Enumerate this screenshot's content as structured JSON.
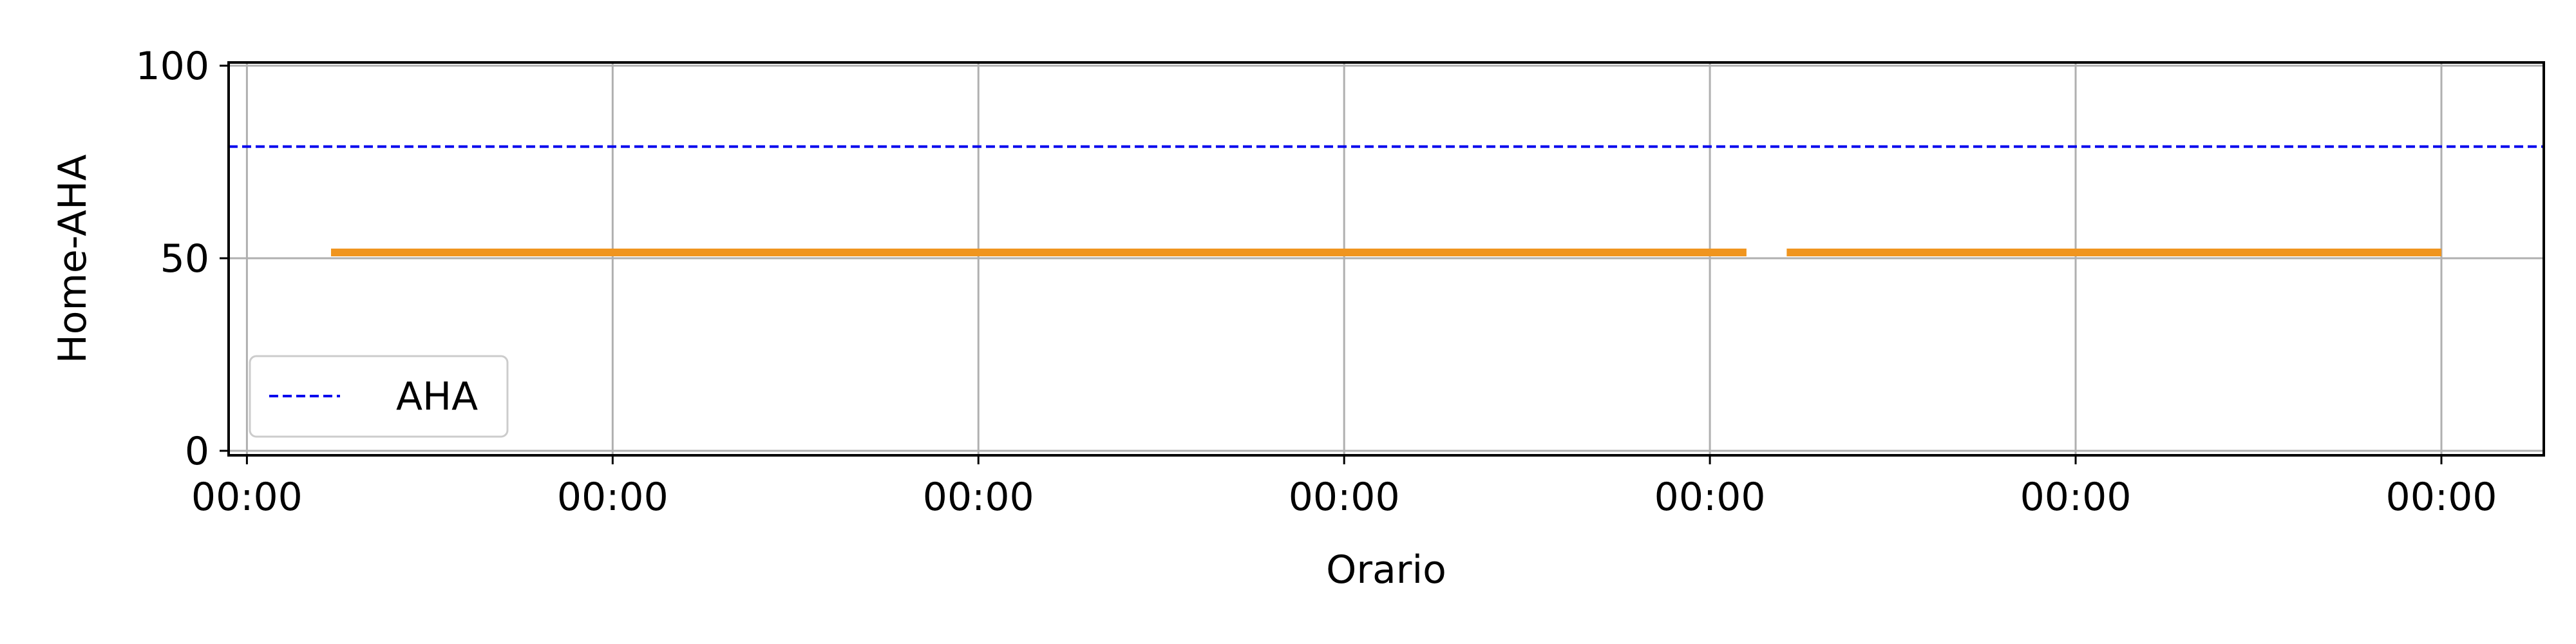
{
  "chart_data": {
    "type": "line",
    "title": "",
    "xlabel": "Orario",
    "ylabel": "Home-AHA",
    "x_tick_labels": [
      "00:00",
      "00:00",
      "00:00",
      "00:00",
      "00:00",
      "00:00",
      "00:00"
    ],
    "y_ticks": [
      0,
      50,
      100
    ],
    "ylim": [
      0,
      100
    ],
    "xlim": [
      -0.05,
      6.28
    ],
    "grid": true,
    "legend_position": "lower-left",
    "series": [
      {
        "segments": [
          {
            "x": [
              0.23,
              4.1
            ],
            "y": [
              51.5,
              51.5
            ]
          },
          {
            "x": [
              4.21,
              6.0
            ],
            "y": [
              51.5,
              51.5
            ]
          }
        ],
        "color": "#f0951f",
        "style": "solid"
      }
    ],
    "reference_lines": [
      {
        "name": "AHA",
        "y": 79,
        "color": "#0000ee",
        "style": "dashed"
      }
    ]
  }
}
